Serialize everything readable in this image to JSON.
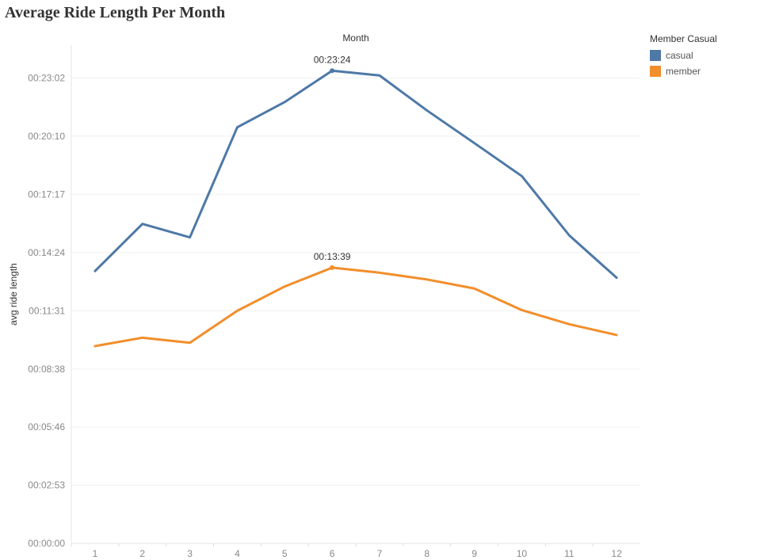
{
  "chart_data": {
    "type": "line",
    "title": "Average Ride Length Per Month",
    "top_label": "Month",
    "ylabel": "avg ride length",
    "xlabel": "",
    "categories": [
      "1",
      "2",
      "3",
      "4",
      "5",
      "6",
      "7",
      "8",
      "9",
      "10",
      "11",
      "12"
    ],
    "y_ticks": [
      {
        "label": "00:00:00",
        "value": 0
      },
      {
        "label": "00:02:53",
        "value": 173
      },
      {
        "label": "00:05:46",
        "value": 346
      },
      {
        "label": "00:08:38",
        "value": 518
      },
      {
        "label": "00:11:31",
        "value": 691
      },
      {
        "label": "00:14:24",
        "value": 864
      },
      {
        "label": "00:17:17",
        "value": 1037
      },
      {
        "label": "00:20:10",
        "value": 1210
      },
      {
        "label": "00:23:02",
        "value": 1382
      }
    ],
    "ylim": [
      0,
      1480
    ],
    "grid": true,
    "legend_title": "Member Casual",
    "legend_position": "right",
    "series": [
      {
        "name": "casual",
        "color": "#4e79a7",
        "values": [
          809,
          949,
          909,
          1236,
          1311,
          1404,
          1390,
          1286,
          1189,
          1091,
          915,
          789
        ],
        "label": {
          "index": 5,
          "text": "00:23:24"
        }
      },
      {
        "name": "member",
        "color": "#f28e2b",
        "values": [
          586,
          611,
          596,
          691,
          763,
          819,
          804,
          784,
          757,
          693,
          651,
          619
        ],
        "label": {
          "index": 5,
          "text": "00:13:39"
        }
      }
    ]
  }
}
